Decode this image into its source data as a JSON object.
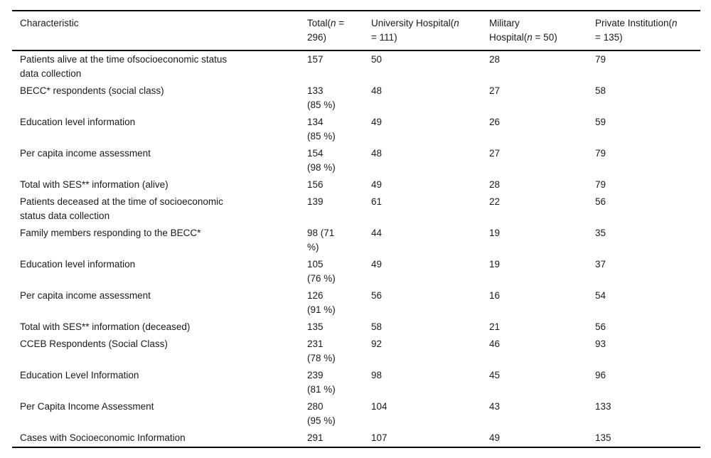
{
  "page": {
    "background_color": "#ffffff",
    "text_color": "#1a1a1a",
    "rule_color": "#000000"
  },
  "table": {
    "headers": {
      "characteristic": "Characteristic",
      "total": {
        "p0": "Total(",
        "n": "n",
        "p1": " =",
        "p2": "296)"
      },
      "university": {
        "p0": "University Hospital(",
        "n": "n",
        "p1": "= 111)"
      },
      "military": {
        "p0": "Military",
        "p1": "Hospital(",
        "n": "n",
        "p2": " = 50)"
      },
      "private": {
        "p0": "Private Institution(",
        "n": "n",
        "p1": "= 135)"
      }
    },
    "rows": [
      {
        "cells": [
          "Patients alive at the time ofsocioeconomic status\ndata collection",
          "157",
          "50",
          "28",
          "79"
        ]
      },
      {
        "cells": [
          "BECC* respondents (social class)",
          "133\n(85 %)",
          "48",
          "27",
          "58"
        ]
      },
      {
        "cells": [
          "Education level information",
          "134\n(85 %)",
          "49",
          "26",
          "59"
        ]
      },
      {
        "cells": [
          "Per capita income assessment",
          "154\n(98 %)",
          "48",
          "27",
          "79"
        ]
      },
      {
        "cells": [
          "Total with SES** information (alive)",
          "156",
          "49",
          "28",
          "79"
        ]
      },
      {
        "cells": [
          "Patients deceased at the time of socioeconomic\nstatus data collection",
          "139",
          "61",
          "22",
          "56"
        ]
      },
      {
        "cells": [
          "Family members responding to the BECC*",
          "98 (71\n%)",
          "44",
          "19",
          "35"
        ]
      },
      {
        "cells": [
          "Education level information",
          "105\n(76 %)",
          "49",
          "19",
          "37"
        ]
      },
      {
        "cells": [
          "Per capita income assessment",
          "126\n(91 %)",
          "56",
          "16",
          "54"
        ]
      },
      {
        "cells": [
          "Total with SES** information (deceased)",
          "135",
          "58",
          "21",
          "56"
        ]
      },
      {
        "cells": [
          "CCEB Respondents (Social Class)",
          "231\n(78 %)",
          "92",
          "46",
          "93"
        ]
      },
      {
        "cells": [
          "Education Level Information",
          "239\n(81 %)",
          "98",
          "45",
          "96"
        ]
      },
      {
        "cells": [
          "Per Capita Income Assessment",
          "280\n(95 %)",
          "104",
          "43",
          "133"
        ]
      },
      {
        "cells": [
          "Cases with Socioeconomic Information",
          "291",
          "107",
          "49",
          "135"
        ]
      }
    ]
  }
}
